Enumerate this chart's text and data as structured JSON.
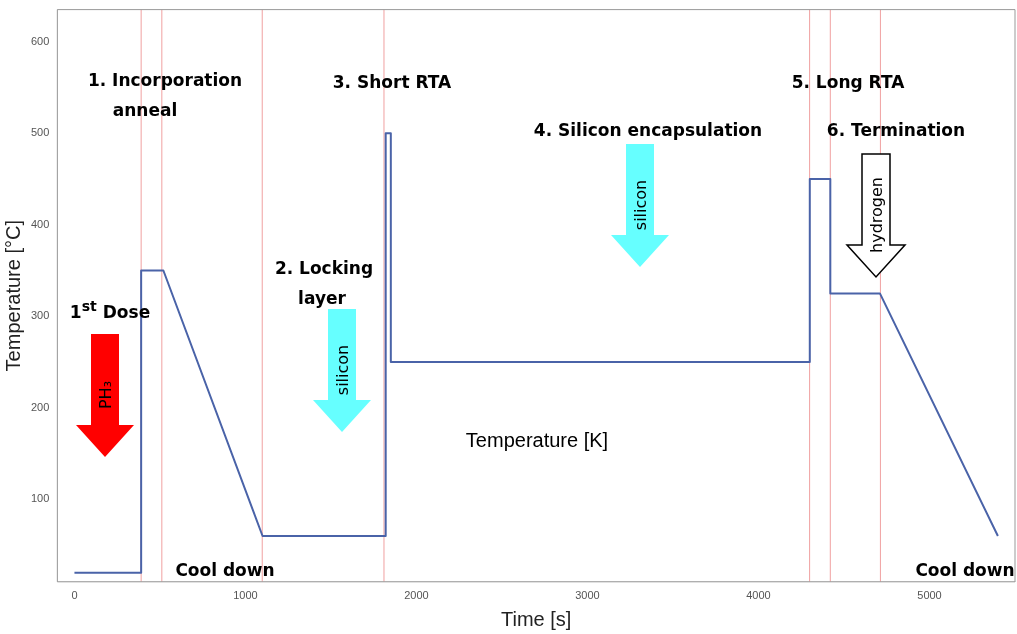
{
  "chart_data": {
    "type": "line",
    "xlabel": "Time [s]",
    "ylabel": "Temperature [°C]",
    "xlim": [
      -100,
      5500
    ],
    "xticks": [
      0,
      1000,
      2000,
      3000,
      4000,
      5000
    ],
    "ylim": [
      10,
      635
    ],
    "yticks": [
      100,
      200,
      300,
      400,
      500,
      600
    ],
    "grid": false,
    "legend": false,
    "marker": "none",
    "line_style": "solid",
    "series": [
      {
        "color": "#4a63a8",
        "x": [
          0,
          390,
          390,
          520,
          1100,
          1820,
          1820,
          1850,
          1850,
          4300,
          4300,
          4420,
          4420,
          4710,
          5400
        ],
        "values": [
          20,
          20,
          350,
          350,
          60,
          60,
          500,
          500,
          250,
          250,
          450,
          450,
          325,
          325,
          60
        ]
      }
    ],
    "ref_lines": [
      {
        "axis": "x",
        "value": 390,
        "color": "#f0a0a0"
      },
      {
        "axis": "x",
        "value": 511,
        "color": "#f0a0a0"
      },
      {
        "axis": "x",
        "value": 1098,
        "color": "#f0a0a0"
      },
      {
        "axis": "x",
        "value": 1810,
        "color": "#f0a0a0"
      },
      {
        "axis": "x",
        "value": 4299,
        "color": "#f0a0a0"
      },
      {
        "axis": "x",
        "value": 4420,
        "color": "#f0a0a0"
      },
      {
        "axis": "x",
        "value": 4713,
        "color": "#f0a0a0"
      }
    ],
    "annotations": [
      "1. Incorporation",
      "anneal",
      "3. Short RTA",
      "5. Long RTA",
      "4. Silicon encapsulation",
      "6. Termination",
      "2. Locking",
      "layer",
      "1$^{st}$ Dose",
      "Cool down",
      "Cool down",
      "Temperature [K]",
      "PH₃",
      "silicon",
      "silicon",
      "hydrogen"
    ]
  }
}
